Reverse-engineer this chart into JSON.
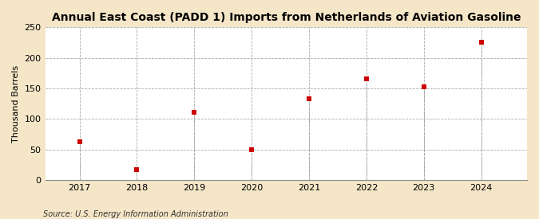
{
  "title": "Annual East Coast (PADD 1) Imports from Netherlands of Aviation Gasoline",
  "ylabel": "Thousand Barrels",
  "source": "Source: U.S. Energy Information Administration",
  "years": [
    2017,
    2018,
    2019,
    2020,
    2021,
    2022,
    2023,
    2024
  ],
  "values": [
    63,
    17,
    111,
    49,
    133,
    165,
    152,
    225
  ],
  "marker_color": "#cc0000",
  "marker": "s",
  "marker_size": 4,
  "vline_color": "#aaaaaa",
  "xlim": [
    2016.4,
    2024.8
  ],
  "ylim": [
    0,
    250
  ],
  "yticks": [
    0,
    50,
    100,
    150,
    200,
    250
  ],
  "xticks": [
    2017,
    2018,
    2019,
    2020,
    2021,
    2022,
    2023,
    2024
  ],
  "fig_bg_color": "#f5e6c8",
  "plot_bg_color": "#ffffff",
  "grid_color": "#aaaaaa",
  "title_fontsize": 10,
  "label_fontsize": 8,
  "tick_fontsize": 8,
  "source_fontsize": 7
}
